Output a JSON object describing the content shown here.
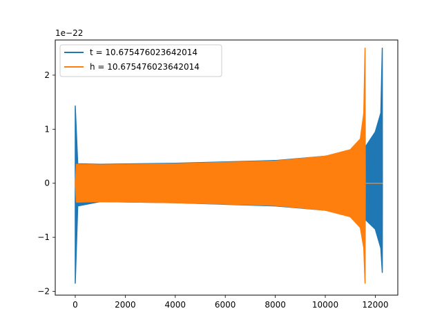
{
  "chart_data": {
    "type": "line",
    "title": "",
    "xlabel": "",
    "ylabel": "",
    "y_offset_label": "1e−22",
    "xlim": [
      -800,
      12900
    ],
    "ylim": [
      -2.07,
      2.65
    ],
    "xticks": [
      0,
      2000,
      4000,
      6000,
      8000,
      10000,
      12000
    ],
    "yticks": [
      -2,
      -1,
      0,
      1,
      2
    ],
    "ytick_labels": [
      "−2",
      "−1",
      "0",
      "1",
      "2"
    ],
    "grid": false,
    "legend_position": "upper-left",
    "series": [
      {
        "name": "t = 10.675476023642014",
        "color": "#1f77b4",
        "envelope": [
          {
            "x": 0,
            "lower": -1.85,
            "upper": 1.43
          },
          {
            "x": 100,
            "lower": -0.42,
            "upper": 0.36
          },
          {
            "x": 1000,
            "lower": -0.34,
            "upper": 0.35
          },
          {
            "x": 4000,
            "lower": -0.36,
            "upper": 0.37
          },
          {
            "x": 8000,
            "lower": -0.42,
            "upper": 0.42
          },
          {
            "x": 10000,
            "lower": -0.5,
            "upper": 0.5
          },
          {
            "x": 11000,
            "lower": -0.58,
            "upper": 0.58
          },
          {
            "x": 11600,
            "lower": -0.67,
            "upper": 0.67
          },
          {
            "x": 12000,
            "lower": -0.85,
            "upper": 0.95
          },
          {
            "x": 12220,
            "lower": -1.2,
            "upper": 1.3
          },
          {
            "x": 12280,
            "lower": -1.65,
            "upper": 2.5
          },
          {
            "x": 12285,
            "lower": 0,
            "upper": 0
          }
        ]
      },
      {
        "name": "h = 10.675476023642014",
        "color": "#ff7f0e",
        "envelope": [
          {
            "x": 0,
            "lower": 0,
            "upper": 0
          },
          {
            "x": 50,
            "lower": -0.35,
            "upper": 0.35
          },
          {
            "x": 1000,
            "lower": -0.34,
            "upper": 0.34
          },
          {
            "x": 4000,
            "lower": -0.36,
            "upper": 0.36
          },
          {
            "x": 8000,
            "lower": -0.41,
            "upper": 0.41
          },
          {
            "x": 10000,
            "lower": -0.5,
            "upper": 0.5
          },
          {
            "x": 11000,
            "lower": -0.62,
            "upper": 0.62
          },
          {
            "x": 11400,
            "lower": -0.82,
            "upper": 0.82
          },
          {
            "x": 11540,
            "lower": -1.2,
            "upper": 1.3
          },
          {
            "x": 11590,
            "lower": -1.85,
            "upper": 2.5
          },
          {
            "x": 11600,
            "lower": 0,
            "upper": 0
          },
          {
            "x": 12285,
            "lower": 0,
            "upper": 0
          }
        ]
      }
    ]
  }
}
